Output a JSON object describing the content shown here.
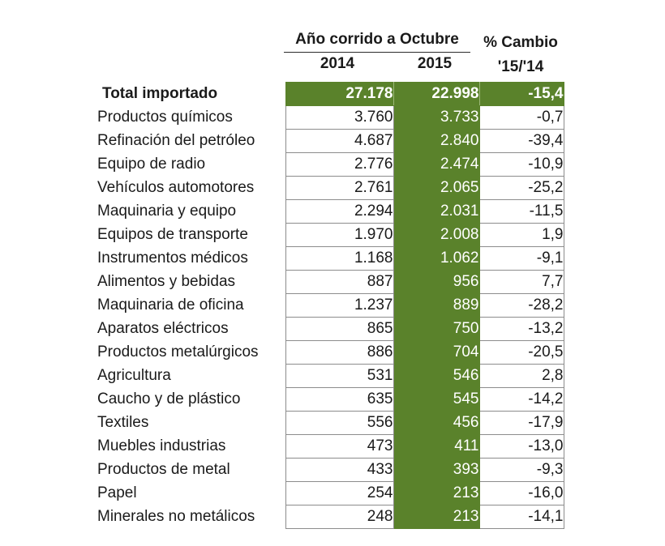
{
  "header": {
    "group_label": "Año corrido a Octubre",
    "year_2014": "2014",
    "year_2015": "2015",
    "pct_line1": "% Cambio",
    "pct_line2": "'15/'14"
  },
  "colors": {
    "accent_green": "#5a822b"
  },
  "rows": [
    {
      "label": "Total importado",
      "v2014": "27.178",
      "v2015": "22.998",
      "pct": "-15,4"
    },
    {
      "label": "Productos químicos",
      "v2014": "3.760",
      "v2015": "3.733",
      "pct": "-0,7"
    },
    {
      "label": "Refinación del petróleo",
      "v2014": "4.687",
      "v2015": "2.840",
      "pct": "-39,4"
    },
    {
      "label": "Equipo de radio",
      "v2014": "2.776",
      "v2015": "2.474",
      "pct": "-10,9"
    },
    {
      "label": "Vehículos automotores",
      "v2014": "2.761",
      "v2015": "2.065",
      "pct": "-25,2"
    },
    {
      "label": "Maquinaria y equipo",
      "v2014": "2.294",
      "v2015": "2.031",
      "pct": "-11,5"
    },
    {
      "label": "Equipos de transporte",
      "v2014": "1.970",
      "v2015": "2.008",
      "pct": "1,9"
    },
    {
      "label": "Instrumentos médicos",
      "v2014": "1.168",
      "v2015": "1.062",
      "pct": "-9,1"
    },
    {
      "label": "Alimentos y bebidas",
      "v2014": "887",
      "v2015": "956",
      "pct": "7,7"
    },
    {
      "label": "Maquinaria de oficina",
      "v2014": "1.237",
      "v2015": "889",
      "pct": "-28,2"
    },
    {
      "label": "Aparatos eléctricos",
      "v2014": "865",
      "v2015": "750",
      "pct": "-13,2"
    },
    {
      "label": "Productos metalúrgicos",
      "v2014": "886",
      "v2015": "704",
      "pct": "-20,5"
    },
    {
      "label": "Agricultura",
      "v2014": "531",
      "v2015": "546",
      "pct": "2,8"
    },
    {
      "label": "Caucho y de plástico",
      "v2014": "635",
      "v2015": "545",
      "pct": "-14,2"
    },
    {
      "label": "Textiles",
      "v2014": "556",
      "v2015": "456",
      "pct": "-17,9"
    },
    {
      "label": "Muebles industrias",
      "v2014": "473",
      "v2015": "411",
      "pct": "-13,0"
    },
    {
      "label": "Productos de metal",
      "v2014": "433",
      "v2015": "393",
      "pct": "-9,3"
    },
    {
      "label": "Papel",
      "v2014": "254",
      "v2015": "213",
      "pct": "-16,0"
    },
    {
      "label": "Minerales no metálicos",
      "v2014": "248",
      "v2015": "213",
      "pct": "-14,1"
    }
  ]
}
